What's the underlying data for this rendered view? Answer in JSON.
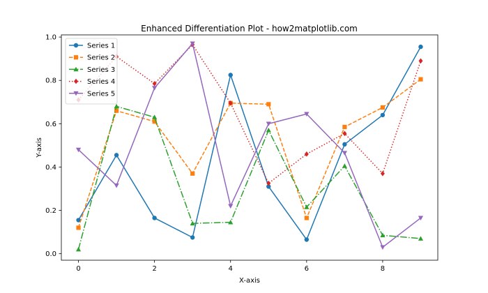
{
  "chart_data": {
    "type": "line",
    "title": "Enhanced Differentiation Plot - how2matplotlib.com",
    "xlabel": "X-axis",
    "ylabel": "Y-axis",
    "x": [
      0,
      1,
      2,
      3,
      4,
      5,
      6,
      7,
      8,
      9
    ],
    "xlim": [
      -0.45,
      9.45
    ],
    "ylim": [
      -0.03,
      1.01
    ],
    "xticks": [
      "0",
      "2",
      "4",
      "6",
      "8"
    ],
    "yticks": [
      "0.0",
      "0.2",
      "0.4",
      "0.6",
      "0.8",
      "1.0"
    ],
    "grid": false,
    "legend_position": "top-left",
    "series": [
      {
        "name": "Series 1",
        "color": "#1f77b4",
        "linestyle": "solid",
        "marker": "circle",
        "values": [
          0.155,
          0.455,
          0.165,
          0.075,
          0.825,
          0.31,
          0.065,
          0.505,
          0.64,
          0.955
        ]
      },
      {
        "name": "Series 2",
        "color": "#ff7f0e",
        "linestyle": "dashed",
        "marker": "square",
        "values": [
          0.12,
          0.66,
          0.61,
          0.37,
          0.695,
          0.69,
          0.165,
          0.585,
          0.675,
          0.805
        ]
      },
      {
        "name": "Series 3",
        "color": "#2ca02c",
        "linestyle": "dashdot",
        "marker": "triangle-up",
        "values": [
          0.02,
          0.68,
          0.63,
          0.14,
          0.145,
          0.57,
          0.215,
          0.405,
          0.085,
          0.07
        ]
      },
      {
        "name": "Series 4",
        "color": "#d62728",
        "linestyle": "dotted",
        "marker": "diamond",
        "values": [
          0.71,
          0.91,
          0.785,
          0.965,
          0.695,
          0.325,
          0.46,
          0.555,
          0.37,
          0.89
        ]
      },
      {
        "name": "Series 5",
        "color": "#9467bd",
        "linestyle": "solid",
        "marker": "triangle-down",
        "values": [
          0.48,
          0.315,
          0.765,
          0.97,
          0.22,
          0.6,
          0.645,
          0.465,
          0.03,
          0.165
        ]
      }
    ]
  }
}
